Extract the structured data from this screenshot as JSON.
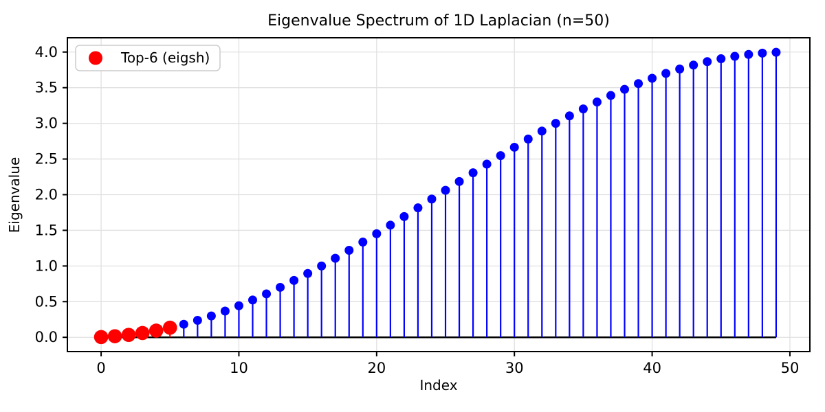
{
  "chart_data": {
    "type": "stem",
    "title": "Eigenvalue Spectrum of 1D Laplacian (n=50)",
    "xlabel": "Index",
    "ylabel": "Eigenvalue",
    "legend": {
      "position": "upper left",
      "entries": [
        {
          "label": "Top-6 (eigsh)",
          "color": "#ff0000",
          "marker": "circle"
        }
      ]
    },
    "x": [
      0,
      1,
      2,
      3,
      4,
      5,
      6,
      7,
      8,
      9,
      10,
      11,
      12,
      13,
      14,
      15,
      16,
      17,
      18,
      19,
      20,
      21,
      22,
      23,
      24,
      25,
      26,
      27,
      28,
      29,
      30,
      31,
      32,
      33,
      34,
      35,
      36,
      37,
      38,
      39,
      40,
      41,
      42,
      43,
      44,
      45,
      46,
      47,
      48,
      49
    ],
    "series": [
      {
        "name": "eigenvalues",
        "color": "#0000ff",
        "marker_radius": 6.5,
        "values": [
          0.0038,
          0.0152,
          0.034,
          0.0604,
          0.0941,
          0.135,
          0.1831,
          0.238,
          0.2997,
          0.368,
          0.4424,
          0.5229,
          0.6091,
          0.7008,
          0.7975,
          0.8953,
          1.0,
          1.1086,
          1.2204,
          1.3353,
          1.4527,
          1.5722,
          1.6932,
          1.8155,
          1.9384,
          2.0616,
          2.1845,
          2.3068,
          2.4279,
          2.5473,
          2.6647,
          2.7796,
          2.8914,
          3.0,
          3.1047,
          3.2025,
          3.2992,
          3.3909,
          3.4771,
          3.5576,
          3.632,
          3.7003,
          3.762,
          3.8169,
          3.865,
          3.9059,
          3.9396,
          3.966,
          3.9848,
          3.9962
        ]
      }
    ],
    "highlight": {
      "label": "Top-6 (eigsh)",
      "indices": [
        0,
        1,
        2,
        3,
        4,
        5
      ],
      "color": "#ff0000",
      "marker_radius": 10.3
    },
    "baseline": {
      "y": 0,
      "color": "#000000",
      "x_start": 0,
      "x_end": 49
    },
    "xlim": [
      -2.45,
      51.45
    ],
    "ylim": [
      -0.2,
      4.2
    ],
    "xticks": [
      0,
      10,
      20,
      30,
      40,
      50
    ],
    "yticks": [
      0.0,
      0.5,
      1.0,
      1.5,
      2.0,
      2.5,
      3.0,
      3.5,
      4.0
    ],
    "ytick_decimals": 1,
    "grid": true,
    "grid_color": "#e0e0e0",
    "axis_color": "#000000",
    "stem_width": 2.2
  }
}
